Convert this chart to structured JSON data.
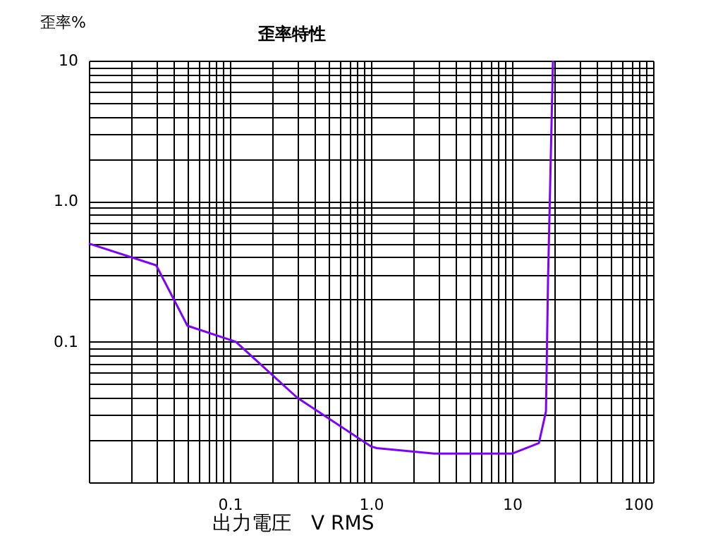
{
  "chart_data": {
    "type": "line",
    "title": "歪率特性",
    "xlabel": "出力電圧　V RMS",
    "ylabel": "歪率%",
    "x": [
      0.01,
      0.03,
      0.05,
      0.11,
      0.3,
      1.0,
      1.1,
      2.8,
      10,
      15.5,
      17.4,
      18,
      19.5
    ],
    "series": [
      {
        "color": "#8000ff",
        "values": [
          0.5,
          0.35,
          0.13,
          0.1,
          0.04,
          0.018,
          0.0175,
          0.016,
          0.016,
          0.019,
          0.032,
          0.28,
          10
        ]
      }
    ],
    "log": "xy",
    "xlim": [
      0.01,
      100
    ],
    "ylim": [
      0.01,
      10
    ],
    "xticks": [
      {
        "value": 0.01,
        "label": null
      },
      {
        "value": 0.02,
        "label": null
      },
      {
        "value": 0.03,
        "label": null
      },
      {
        "value": 0.04,
        "label": null
      },
      {
        "value": 0.05,
        "label": null
      },
      {
        "value": 0.06,
        "label": null
      },
      {
        "value": 0.07,
        "label": null
      },
      {
        "value": 0.08,
        "label": null
      },
      {
        "value": 0.09,
        "label": null
      },
      {
        "value": 0.1,
        "label": "0.1"
      },
      {
        "value": 0.2,
        "label": null
      },
      {
        "value": 0.3,
        "label": null
      },
      {
        "value": 0.4,
        "label": null
      },
      {
        "value": 0.5,
        "label": null
      },
      {
        "value": 0.6,
        "label": null
      },
      {
        "value": 0.7,
        "label": null
      },
      {
        "value": 0.8,
        "label": null
      },
      {
        "value": 0.9,
        "label": null
      },
      {
        "value": 1,
        "label": "1.0"
      },
      {
        "value": 2,
        "label": null
      },
      {
        "value": 3,
        "label": null
      },
      {
        "value": 4,
        "label": null
      },
      {
        "value": 5,
        "label": null
      },
      {
        "value": 6,
        "label": null
      },
      {
        "value": 7,
        "label": null
      },
      {
        "value": 8,
        "label": null
      },
      {
        "value": 9,
        "label": null
      },
      10,
      {
        "value": 20,
        "label": null
      },
      {
        "value": 30,
        "label": null
      },
      {
        "value": 40,
        "label": null
      },
      {
        "value": 50,
        "label": null
      },
      {
        "value": 60,
        "label": null
      },
      {
        "value": 70,
        "label": null
      },
      {
        "value": 80,
        "label": null
      },
      {
        "value": 90,
        "label": null
      },
      100
    ],
    "yticks": [
      {
        "value": 0.01,
        "label": null
      },
      {
        "value": 0.02,
        "label": null
      },
      {
        "value": 0.03,
        "label": null
      },
      {
        "value": 0.04,
        "label": null
      },
      {
        "value": 0.05,
        "label": null
      },
      {
        "value": 0.06,
        "label": null
      },
      {
        "value": 0.07,
        "label": null
      },
      {
        "value": 0.08,
        "label": null
      },
      {
        "value": 0.09,
        "label": null
      },
      0.1,
      {
        "value": 0.2,
        "label": null
      },
      {
        "value": 0.3,
        "label": null
      },
      {
        "value": 0.4,
        "label": null
      },
      {
        "value": 0.5,
        "label": null
      },
      {
        "value": 0.6,
        "label": null
      },
      {
        "value": 0.7,
        "label": null
      },
      {
        "value": 0.8,
        "label": null
      },
      {
        "value": 0.9,
        "label": null
      },
      {
        "value": 1,
        "label": "1.0"
      },
      {
        "value": 2,
        "label": null
      },
      {
        "value": 3,
        "label": null
      },
      {
        "value": 4,
        "label": null
      },
      {
        "value": 5,
        "label": null
      },
      {
        "value": 6,
        "label": null
      },
      {
        "value": 7,
        "label": null
      },
      {
        "value": 8,
        "label": null
      },
      {
        "value": 9,
        "label": null
      },
      10
    ],
    "grid": true,
    "marker": "none",
    "line_style": "solid",
    "legend": false
  }
}
